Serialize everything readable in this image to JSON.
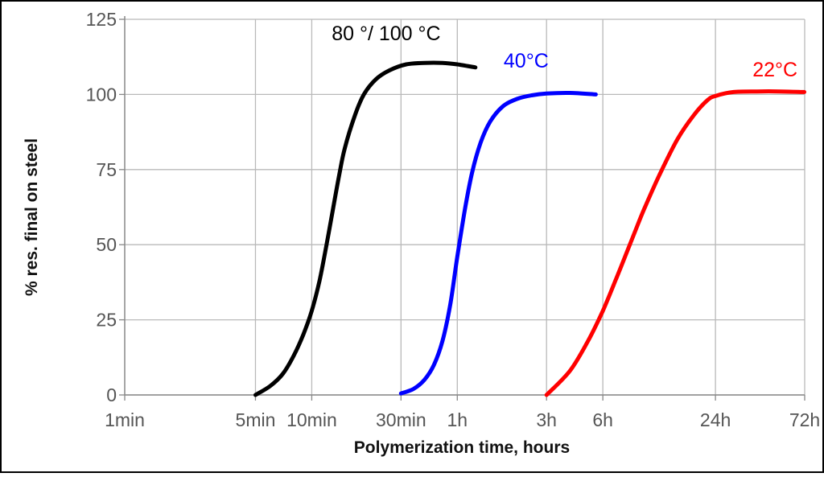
{
  "chart_data": {
    "type": "line",
    "title": "",
    "xlabel": "Polymerization time, hours",
    "ylabel": "% res. final on steel",
    "x_scale": "log",
    "x_unit": "minutes",
    "xlim": [
      1,
      4320
    ],
    "ylim": [
      0,
      125
    ],
    "grid": true,
    "x_ticks": [
      {
        "label": "1min",
        "value": 1
      },
      {
        "label": "5min",
        "value": 5
      },
      {
        "label": "10min",
        "value": 10
      },
      {
        "label": "30min",
        "value": 30
      },
      {
        "label": "1h",
        "value": 60
      },
      {
        "label": "3h",
        "value": 180
      },
      {
        "label": "6h",
        "value": 360
      },
      {
        "label": "24h",
        "value": 1440
      },
      {
        "label": "72h",
        "value": 4320
      }
    ],
    "y_ticks": [
      {
        "label": "0",
        "value": 0
      },
      {
        "label": "25",
        "value": 25
      },
      {
        "label": "50",
        "value": 50
      },
      {
        "label": "75",
        "value": 75
      },
      {
        "label": "100",
        "value": 100
      },
      {
        "label": "125",
        "value": 125
      }
    ],
    "series": [
      {
        "name": "80 °/ 100 °C",
        "color": "#000000",
        "label_anchor": {
          "x": 25,
          "y": 118
        },
        "x": [
          5,
          6,
          7,
          8,
          9,
          10,
          11,
          12,
          13,
          14,
          15,
          17,
          19,
          22,
          26,
          32,
          40,
          50,
          60,
          75
        ],
        "y": [
          0,
          3,
          7,
          13,
          20,
          28,
          38,
          50,
          62,
          73,
          82,
          93,
          100,
          105,
          108,
          110,
          110.5,
          110.5,
          110,
          109
        ]
      },
      {
        "name": "40°C",
        "color": "#0000ff",
        "label_anchor": {
          "x": 140,
          "y": 109
        },
        "x": [
          30,
          35,
          40,
          45,
          50,
          55,
          60,
          66,
          72,
          80,
          90,
          105,
          125,
          150,
          180,
          240,
          330
        ],
        "y": [
          0.5,
          2,
          5,
          10,
          18,
          30,
          46,
          62,
          74,
          84,
          91,
          96,
          98.5,
          99.7,
          100.3,
          100.5,
          100
        ]
      },
      {
        "name": "22°C",
        "color": "#ff0000",
        "label_anchor": {
          "x": 3000,
          "y": 106
        },
        "x": [
          180,
          240,
          300,
          360,
          420,
          480,
          540,
          600,
          720,
          900,
          1100,
          1300,
          1440,
          1800,
          2400,
          3200,
          4300
        ],
        "y": [
          0,
          8,
          18,
          28,
          38,
          47,
          55,
          62,
          73,
          85,
          93,
          98,
          99.5,
          100.8,
          101,
          101,
          100.8
        ]
      }
    ]
  }
}
